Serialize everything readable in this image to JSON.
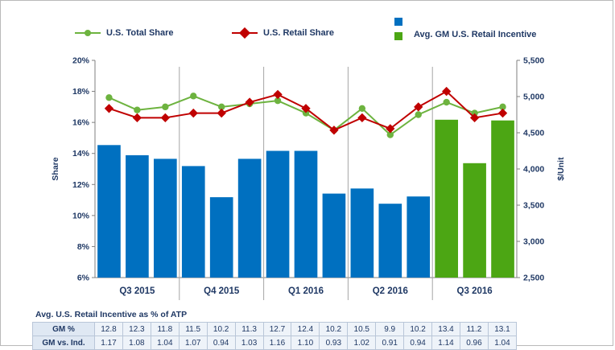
{
  "legend": {
    "total_share": {
      "label": "U.S. Total Share",
      "color": "#6db33f"
    },
    "retail_share": {
      "label": "U.S. Retail Share",
      "color": "#c00000"
    },
    "avg_gm_incentive": {
      "label": "Avg. GM U.S. Retail Incentive",
      "colors": [
        "#0070c0",
        "#4ca614"
      ]
    }
  },
  "chart_data": {
    "type": "bar",
    "ylabel_left": "Share",
    "ylabel_right": "$/Unit",
    "y_left_ticks": [
      "6%",
      "8%",
      "10%",
      "12%",
      "14%",
      "16%",
      "18%",
      "20%"
    ],
    "y_left_range": [
      6,
      20
    ],
    "y_right_ticks": [
      "2,500",
      "3,000",
      "3,500",
      "4,000",
      "4,500",
      "5,000",
      "5,500"
    ],
    "y_right_range": [
      2500,
      5500
    ],
    "groups": [
      "Q3 2015",
      "Q4 2015",
      "Q1 2016",
      "Q2 2016",
      "Q3 2016"
    ],
    "grid": false,
    "bar_colors": {
      "past": "#0070c0",
      "current": "#4ca614"
    },
    "series": [
      {
        "name": "Avg. GM U.S. Retail Incentive",
        "kind": "bar",
        "axis": "right",
        "values": [
          4330,
          4190,
          4140,
          4040,
          3610,
          4140,
          4250,
          4250,
          3660,
          3730,
          3520,
          3620,
          4680,
          4080,
          4670
        ]
      },
      {
        "name": "U.S. Total Share",
        "kind": "line",
        "axis": "left",
        "color": "#6db33f",
        "values": [
          17.6,
          16.8,
          17.0,
          17.7,
          17.0,
          17.2,
          17.4,
          16.6,
          15.5,
          16.9,
          15.2,
          16.5,
          17.3,
          16.6,
          17.0
        ]
      },
      {
        "name": "U.S. Retail Share",
        "kind": "line",
        "axis": "left",
        "color": "#c00000",
        "values": [
          16.9,
          16.3,
          16.3,
          16.6,
          16.6,
          17.3,
          17.8,
          16.9,
          15.5,
          16.3,
          15.6,
          17.0,
          18.0,
          16.3,
          16.6
        ]
      }
    ]
  },
  "incentive_table": {
    "title": "Avg. U.S. Retail Incentive as % of ATP",
    "rows": [
      {
        "label": "GM %",
        "values": [
          "12.8",
          "12.3",
          "11.8",
          "11.5",
          "10.2",
          "11.3",
          "12.7",
          "12.4",
          "10.2",
          "10.5",
          "9.9",
          "10.2",
          "13.4",
          "11.2",
          "13.1"
        ]
      },
      {
        "label": "GM vs. Ind.",
        "values": [
          "1.17",
          "1.08",
          "1.04",
          "1.07",
          "0.94",
          "1.03",
          "1.16",
          "1.10",
          "0.93",
          "1.02",
          "0.91",
          "0.94",
          "1.14",
          "0.96",
          "1.04"
        ]
      }
    ]
  }
}
